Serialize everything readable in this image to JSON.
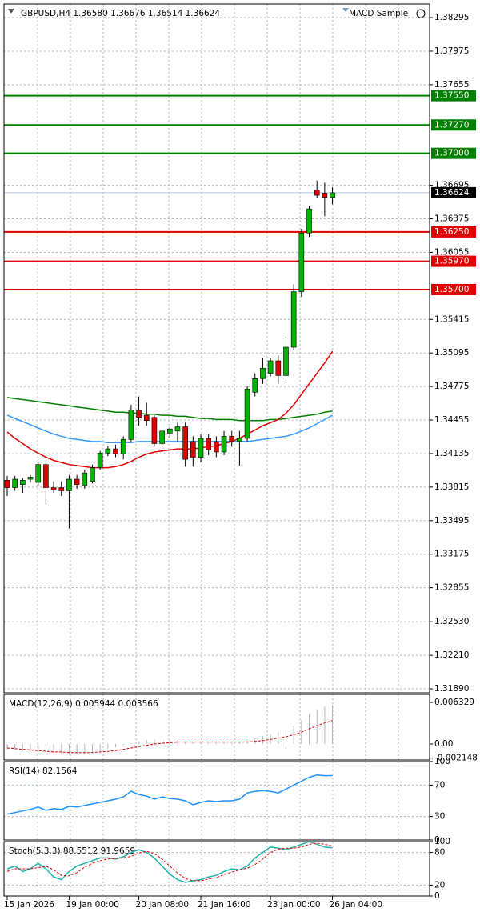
{
  "chart_data": [
    {
      "type": "candlestick",
      "title": "GBPUSD,H4  1.36580 1.36676 1.36514 1.36624",
      "expert": "MACD Sample",
      "categories": [
        "15 Jan 2026",
        null,
        null,
        null,
        null,
        null,
        null,
        null,
        "19 Jan 00:00",
        null,
        null,
        null,
        null,
        null,
        null,
        null,
        null,
        "20 Jan 08:00",
        null,
        null,
        null,
        null,
        null,
        null,
        null,
        "21 Jan 16:00",
        null,
        null,
        null,
        null,
        null,
        null,
        null,
        null,
        "23 Jan 00:00",
        null,
        null,
        null,
        null,
        null,
        null,
        null,
        "26 Jan 04:00"
      ],
      "open": [
        1.3388,
        1.3381,
        1.3384,
        1.3389,
        1.3386,
        1.3403,
        1.3381,
        1.3381,
        1.3378,
        1.3389,
        1.3383,
        1.3387,
        1.34,
        1.3414,
        1.3418,
        1.3413,
        1.3427,
        1.3455,
        1.345,
        1.3448,
        1.3423,
        1.3433,
        1.3435,
        1.3439,
        1.3425,
        1.341,
        1.3428,
        1.3425,
        1.3415,
        1.343,
        1.3425,
        1.3428,
        1.3472,
        1.3485,
        1.349,
        1.3502,
        1.3488,
        1.3515,
        1.3568,
        1.3624,
        1.3665,
        1.3662,
        1.3658
      ],
      "high": [
        1.3392,
        1.3392,
        1.339,
        1.3393,
        1.3406,
        1.3407,
        1.3387,
        1.3387,
        1.3393,
        1.3393,
        1.3398,
        1.3403,
        1.3416,
        1.3421,
        1.3422,
        1.343,
        1.346,
        1.3468,
        1.3462,
        1.345,
        1.3437,
        1.344,
        1.3443,
        1.3443,
        1.343,
        1.3432,
        1.3432,
        1.343,
        1.3435,
        1.3435,
        1.3435,
        1.3478,
        1.349,
        1.3505,
        1.3505,
        1.3507,
        1.3525,
        1.3575,
        1.3628,
        1.365,
        1.3674,
        1.3672,
        1.36676
      ],
      "low": [
        1.3373,
        1.3378,
        1.3376,
        1.3386,
        1.3383,
        1.3365,
        1.3376,
        1.3373,
        1.3342,
        1.338,
        1.338,
        1.3385,
        1.3398,
        1.3411,
        1.341,
        1.3408,
        1.3425,
        1.344,
        1.344,
        1.342,
        1.3418,
        1.3428,
        1.3425,
        1.3401,
        1.3401,
        1.3405,
        1.3412,
        1.341,
        1.3412,
        1.342,
        1.3402,
        1.3425,
        1.3468,
        1.348,
        1.3487,
        1.348,
        1.3483,
        1.3512,
        1.3563,
        1.362,
        1.3657,
        1.364,
        1.36514
      ],
      "close": [
        1.3381,
        1.3389,
        1.3388,
        1.3391,
        1.3403,
        1.3381,
        1.3379,
        1.3378,
        1.3389,
        1.3384,
        1.3395,
        1.34,
        1.3414,
        1.3418,
        1.3413,
        1.3427,
        1.3455,
        1.3448,
        1.3445,
        1.3423,
        1.3435,
        1.3437,
        1.3439,
        1.3408,
        1.341,
        1.3428,
        1.3417,
        1.3415,
        1.343,
        1.3425,
        1.3428,
        1.3475,
        1.3485,
        1.3495,
        1.3502,
        1.3488,
        1.3515,
        1.3568,
        1.3624,
        1.3647,
        1.366,
        1.3658,
        1.36624
      ],
      "up_color": "#00b400",
      "down_color": "#e00000",
      "series": [
        {
          "color": "#008000",
          "values": [
            1.3467,
            1.3466,
            1.3465,
            1.3464,
            1.3463,
            1.3462,
            1.3461,
            1.346,
            1.3459,
            1.3458,
            1.3457,
            1.3456,
            1.3455,
            1.3454,
            1.3453,
            1.3453,
            1.3452,
            1.3452,
            1.3451,
            1.3451,
            1.345,
            1.345,
            1.3449,
            1.3449,
            1.3448,
            1.3447,
            1.3447,
            1.3446,
            1.3446,
            1.3446,
            1.3445,
            1.3445,
            1.3445,
            1.3445,
            1.3446,
            1.3446,
            1.3447,
            1.3448,
            1.3449,
            1.345,
            1.3451,
            1.3453,
            1.3454
          ]
        },
        {
          "color": "#3399ff",
          "values": [
            1.345,
            1.3447,
            1.3444,
            1.3441,
            1.3438,
            1.3435,
            1.3432,
            1.343,
            1.3428,
            1.3427,
            1.3426,
            1.3425,
            1.3425,
            1.3424,
            1.3424,
            1.3424,
            1.3424,
            1.3425,
            1.3425,
            1.3425,
            1.3425,
            1.3425,
            1.3425,
            1.3425,
            1.3425,
            1.3425,
            1.3425,
            1.3425,
            1.3425,
            1.3425,
            1.3425,
            1.3425,
            1.3426,
            1.3427,
            1.3428,
            1.3429,
            1.343,
            1.3432,
            1.3435,
            1.3438,
            1.3442,
            1.3446,
            1.345
          ]
        },
        {
          "color": "#e00000",
          "values": [
            1.3434,
            1.3428,
            1.3423,
            1.3418,
            1.3414,
            1.341,
            1.3407,
            1.3405,
            1.3403,
            1.3402,
            1.3401,
            1.34,
            1.34,
            1.34,
            1.3401,
            1.3403,
            1.3406,
            1.341,
            1.3413,
            1.3415,
            1.3416,
            1.3417,
            1.3418,
            1.3418,
            1.3418,
            1.3419,
            1.342,
            1.3421,
            1.3423,
            1.3425,
            1.3428,
            1.3432,
            1.3436,
            1.344,
            1.3443,
            1.3446,
            1.3452,
            1.346,
            1.347,
            1.348,
            1.349,
            1.35,
            1.3511
          ]
        }
      ],
      "levels": [
        {
          "value": 1.3755,
          "label": "1.37550",
          "color": "#008000"
        },
        {
          "value": 1.3727,
          "label": "1.37270",
          "color": "#008000"
        },
        {
          "value": 1.37,
          "label": "1.37000",
          "color": "#008000"
        },
        {
          "value": 1.3625,
          "label": "1.36250",
          "color": "#e00000"
        },
        {
          "value": 1.3597,
          "label": "1.35970",
          "color": "#e00000"
        },
        {
          "value": 1.357,
          "label": "1.35700",
          "color": "#e00000"
        }
      ],
      "current_price": 1.36624,
      "ylim": [
        1.31852,
        1.38425
      ],
      "yticks": [
        1.38295,
        1.37975,
        1.37655,
        1.36695,
        1.36375,
        1.36055,
        1.35415,
        1.35095,
        1.34775,
        1.34455,
        1.34135,
        1.33815,
        1.33495,
        1.33175,
        1.32855,
        {
          "value": 1.3253,
          "label": "1.32530"
        },
        {
          "value": 1.3221,
          "label": "1.32210"
        },
        {
          "value": 1.3189,
          "label": "1.31890"
        }
      ],
      "grid": true
    },
    {
      "type": "macd",
      "title": "MACD(12,26,9) 0.005944 0.003566",
      "series": [
        {
          "style": "bar",
          "color": "#b4b4b4",
          "values": [
            -0.0008,
            -0.0009,
            -0.001,
            -0.0011,
            -0.0012,
            -0.0013,
            -0.0014,
            -0.0015,
            -0.0016,
            -0.0016,
            -0.0015,
            -0.0013,
            -0.0011,
            -0.0008,
            -0.0005,
            -0.0002,
            0.0001,
            0.0004,
            0.0006,
            0.0007,
            0.0007,
            0.0006,
            0.0005,
            0.0004,
            0.0003,
            0.0002,
            0.0002,
            0.0002,
            0.0002,
            0.0002,
            0.0003,
            0.0006,
            0.0009,
            0.0012,
            0.0015,
            0.0018,
            0.0022,
            0.0028,
            0.0036,
            0.0045,
            0.0052,
            0.0057,
            0.005944
          ]
        },
        {
          "style": "dash",
          "color": "#e00000",
          "values": [
            -0.0006,
            -0.0007,
            -0.0008,
            -0.0009,
            -0.001,
            -0.0011,
            -0.0012,
            -0.0012,
            -0.0013,
            -0.0013,
            -0.0013,
            -0.0013,
            -0.0012,
            -0.0011,
            -0.001,
            -0.0008,
            -0.0006,
            -0.0004,
            -0.0002,
            0,
            0.0001,
            0.0002,
            0.0003,
            0.0003,
            0.0003,
            0.0003,
            0.0003,
            0.0003,
            0.0003,
            0.0003,
            0.0003,
            0.0003,
            0.0004,
            0.0005,
            0.0007,
            0.0009,
            0.0011,
            0.0014,
            0.0018,
            0.0023,
            0.0028,
            0.0032,
            0.003566
          ]
        }
      ],
      "ylim": [
        -0.00243,
        0.00755
      ],
      "yticks": [
        0.006329,
        {
          "value": 0,
          "label": "0.00"
        },
        -0.002148
      ]
    },
    {
      "type": "line",
      "title": "RSI(14) 82.1564",
      "series": [
        {
          "style": "solid",
          "color": "#1e90ff",
          "values": [
            33,
            35,
            37,
            39,
            42,
            38,
            40,
            39,
            43,
            42,
            44,
            46,
            48,
            50,
            52,
            55,
            62,
            58,
            56,
            52,
            55,
            53,
            52,
            50,
            45,
            48,
            50,
            49,
            50,
            50,
            52,
            60,
            62,
            63,
            62,
            60,
            65,
            70,
            75,
            80,
            83,
            82,
            82.1564
          ]
        }
      ],
      "ylim": [
        0,
        100
      ],
      "yticks": [
        100,
        70,
        30,
        0
      ],
      "grid": true
    },
    {
      "type": "line",
      "title": "Stoch(5,3,3) 88.5512 91.9659",
      "series": [
        {
          "style": "solid",
          "color": "#20b2aa",
          "values": [
            50,
            55,
            45,
            50,
            60,
            50,
            35,
            30,
            45,
            55,
            60,
            65,
            70,
            70,
            68,
            72,
            80,
            85,
            80,
            70,
            55,
            40,
            30,
            25,
            28,
            30,
            35,
            38,
            45,
            50,
            48,
            55,
            70,
            80,
            90,
            88,
            85,
            90,
            95,
            100,
            95,
            90,
            88.5512
          ]
        },
        {
          "style": "dash",
          "color": "#e00000",
          "values": [
            45,
            50,
            50,
            50,
            52,
            55,
            48,
            38,
            37,
            43,
            53,
            60,
            65,
            68,
            69,
            70,
            73,
            79,
            82,
            78,
            68,
            55,
            42,
            32,
            28,
            28,
            31,
            34,
            39,
            44,
            48,
            51,
            58,
            68,
            80,
            86,
            88,
            88,
            90,
            95,
            97,
            95,
            91.9659
          ]
        }
      ],
      "ylim": [
        0,
        100
      ],
      "yticks": [
        100,
        80,
        20,
        0
      ],
      "grid": true
    }
  ]
}
